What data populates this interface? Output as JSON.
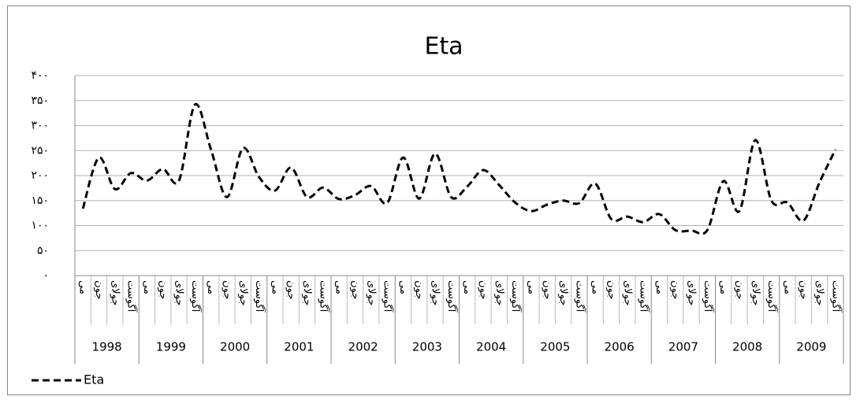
{
  "chart_data": {
    "type": "line",
    "title": "Eta",
    "categories": [
      "می",
      "جون",
      "جولای",
      "آگوست",
      "می",
      "جون",
      "جولای",
      "آگوست",
      "می",
      "جون",
      "جولای",
      "آگوست",
      "می",
      "جون",
      "جولای",
      "آگوست",
      "می",
      "جون",
      "جولای",
      "آگوست",
      "می",
      "جون",
      "جولای",
      "آگوست",
      "می",
      "جون",
      "جولای",
      "آگوست",
      "می",
      "جون",
      "جولای",
      "آگوست",
      "می",
      "جون",
      "جولای",
      "آگوست",
      "می",
      "جون",
      "جولای",
      "آگوست",
      "می",
      "جون",
      "جولای",
      "آگوست",
      "می",
      "جون",
      "جولای",
      "آگوست"
    ],
    "category_groups": [
      "1998",
      "1999",
      "2000",
      "2001",
      "2002",
      "2003",
      "2004",
      "2005",
      "2006",
      "2007",
      "2008",
      "2009"
    ],
    "series": [
      {
        "name": "Eta",
        "color": "#000000",
        "values": [
          134,
          236,
          173,
          205,
          190,
          213,
          190,
          342,
          252,
          157,
          255,
          197,
          170,
          216,
          157,
          176,
          153,
          161,
          179,
          145,
          236,
          154,
          244,
          157,
          178,
          211,
          181,
          146,
          129,
          142,
          150,
          145,
          184,
          113,
          118,
          107,
          123,
          91,
          90,
          91,
          189,
          129,
          271,
          150,
          146,
          110,
          186,
          252
        ]
      }
    ],
    "ylim": [
      0,
      400
    ],
    "yticks": [
      {
        "value": 0,
        "label": "۰"
      },
      {
        "value": 50,
        "label": "۵۰"
      },
      {
        "value": 100,
        "label": "۱۰۰"
      },
      {
        "value": 150,
        "label": "۱۵۰"
      },
      {
        "value": 200,
        "label": "۲۰۰"
      },
      {
        "value": 250,
        "label": "۲۵۰"
      },
      {
        "value": 300,
        "label": "۳۰۰"
      },
      {
        "value": 350,
        "label": "۳۵۰"
      },
      {
        "value": 400,
        "label": "۴۰۰"
      }
    ],
    "grid": true,
    "legend": "bottom-left",
    "smooth": true,
    "dashed": true
  }
}
